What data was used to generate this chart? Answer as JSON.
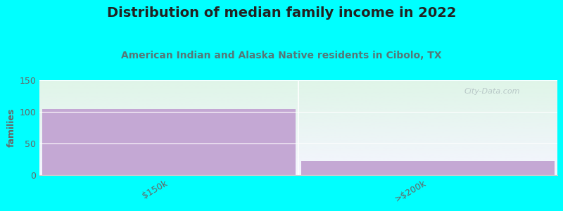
{
  "title": "Distribution of median family income in 2022",
  "subtitle": "American Indian and Alaska Native residents in Cibolo, TX",
  "categories": [
    "$150k",
    ">$200k"
  ],
  "values": [
    105,
    22
  ],
  "bar_color": "#c4a8d4",
  "ylim": [
    0,
    150
  ],
  "yticks": [
    0,
    50,
    100,
    150
  ],
  "ylabel": "families",
  "title_fontsize": 14,
  "subtitle_fontsize": 10,
  "subtitle_color": "#557777",
  "title_color": "#222222",
  "tick_label_color": "#666666",
  "background_color": "#00ffff",
  "plot_bg_top": "#dff5e8",
  "plot_bg_bottom": "#f5f5ff",
  "watermark": "City-Data.com"
}
